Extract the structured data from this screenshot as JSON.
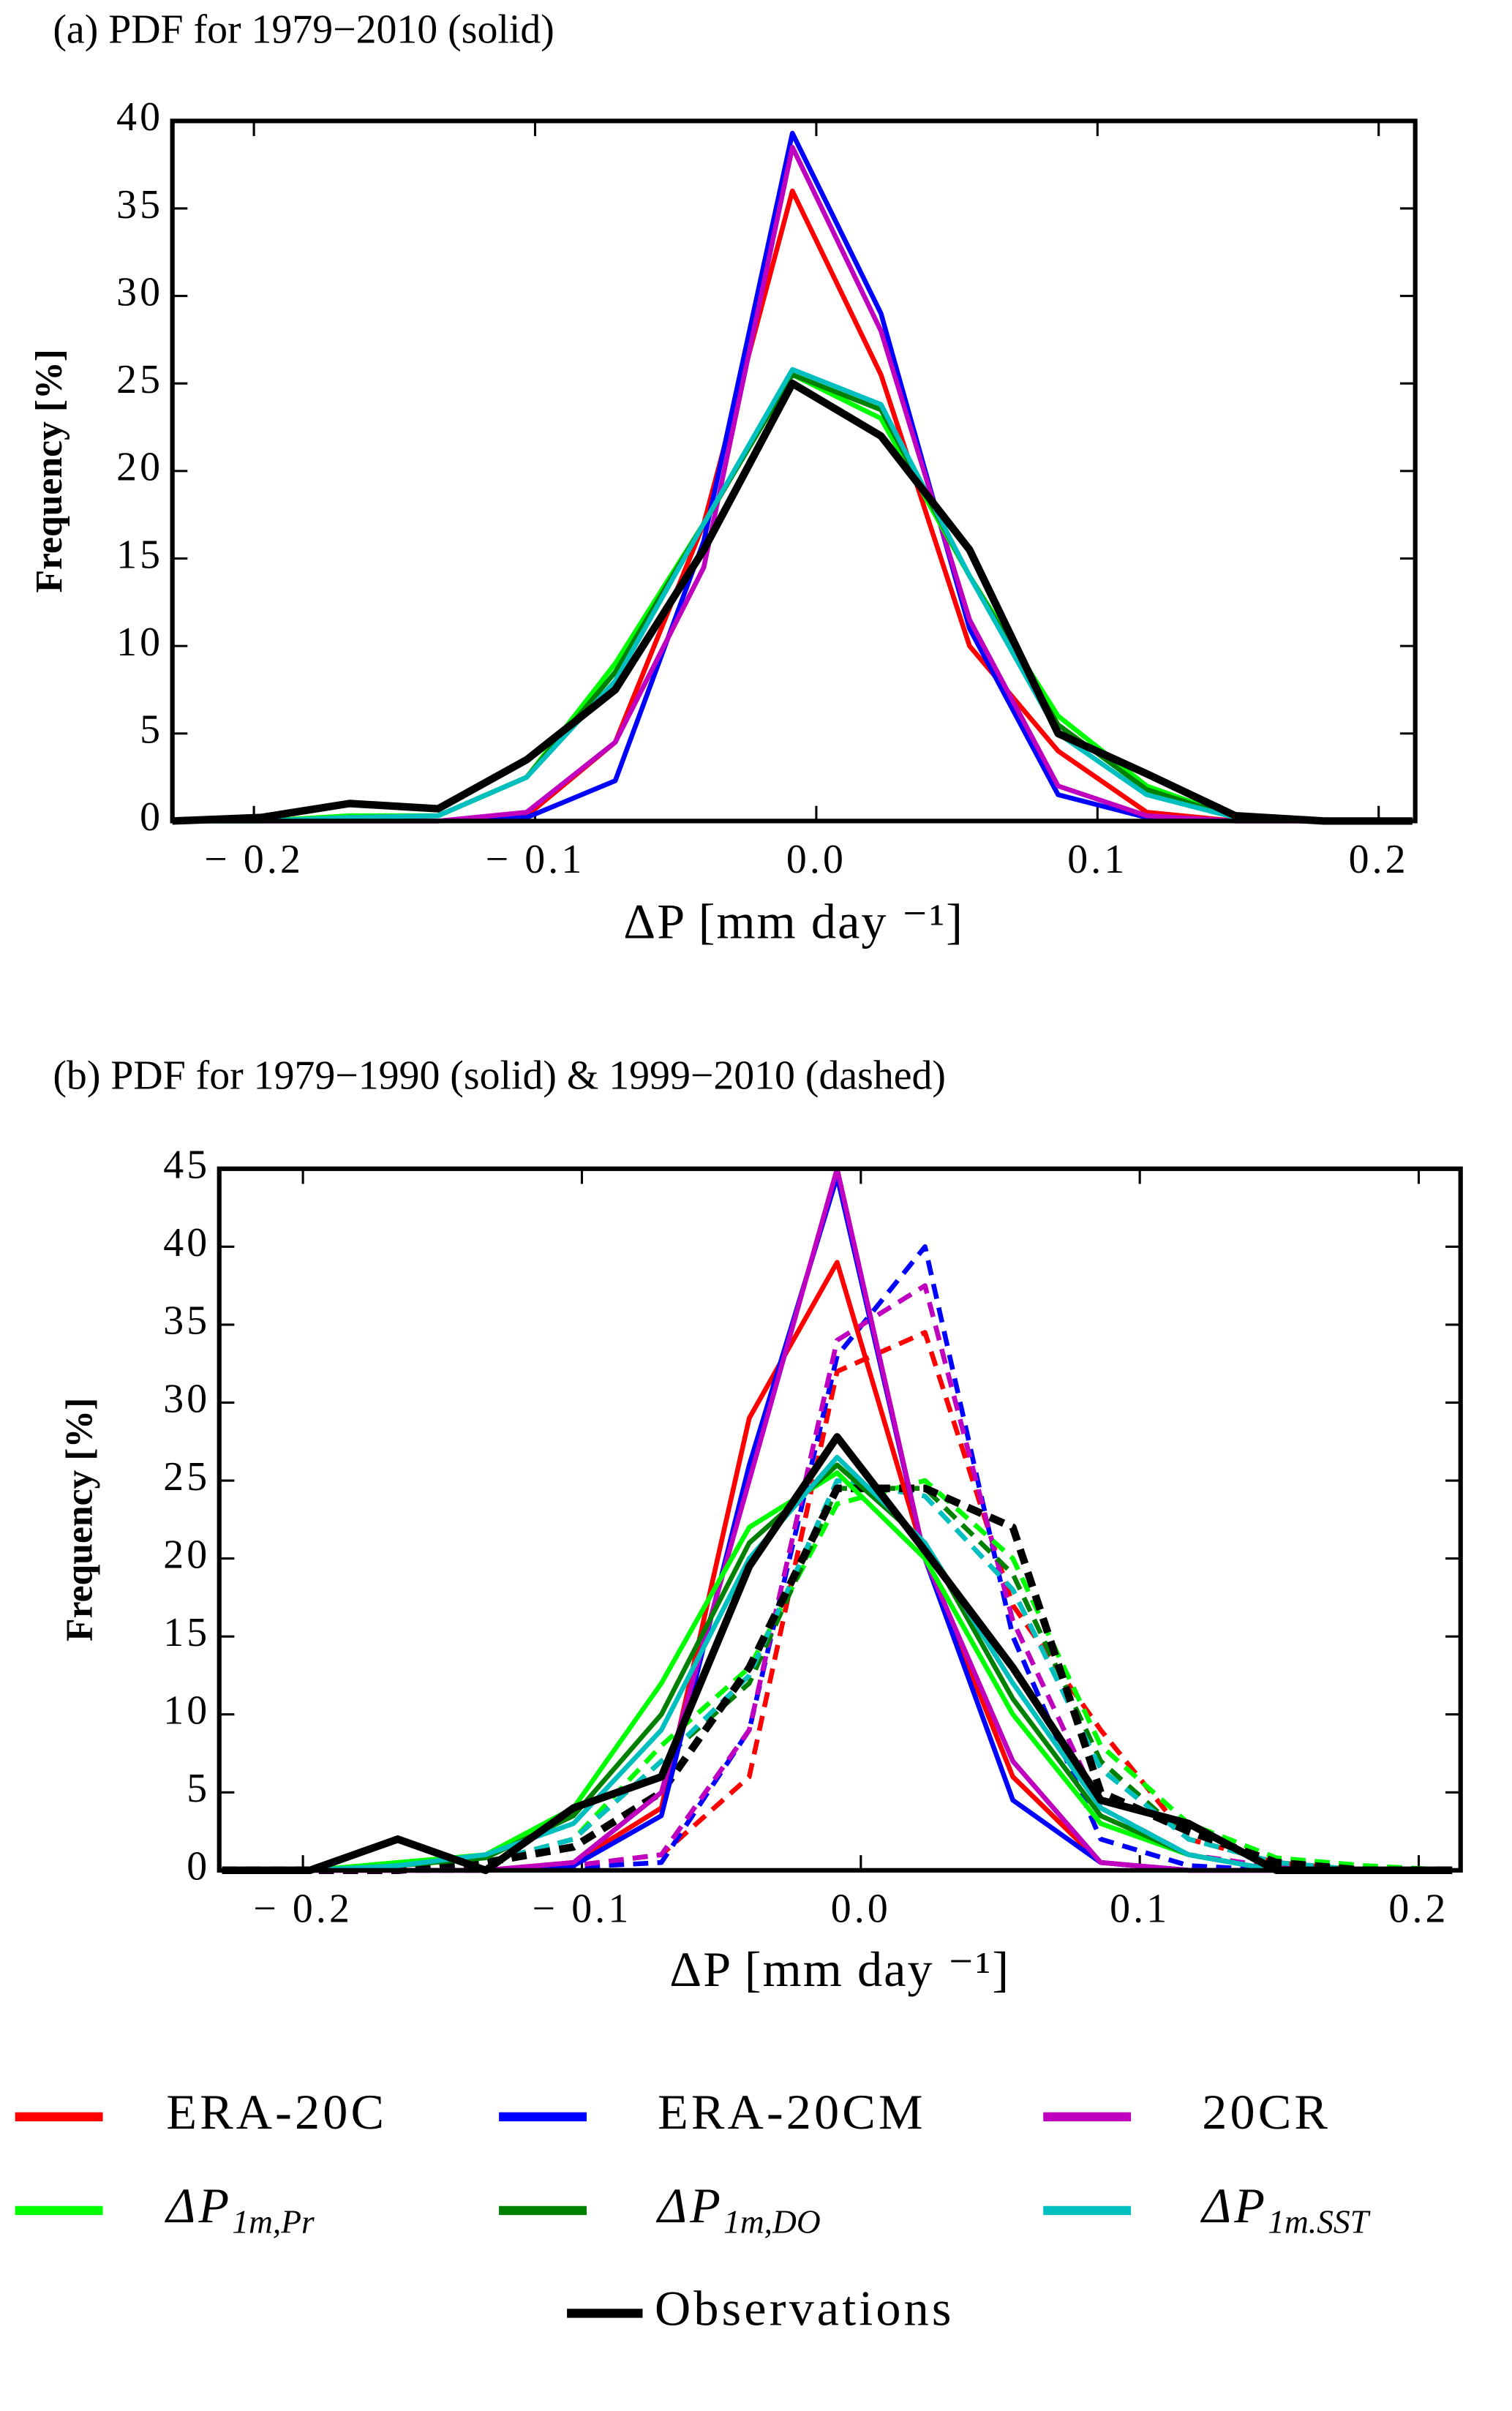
{
  "chart_data": [
    {
      "type": "line",
      "title": "(a) PDF for 1979−2010 (solid)",
      "x_label": "ΔP [mm day ⁻¹]",
      "y_label": "Frequency [%]",
      "x": [
        -0.229,
        -0.1975,
        -0.166,
        -0.1345,
        -0.103,
        -0.0715,
        -0.04,
        -0.0085,
        0.023,
        0.0545,
        0.086,
        0.1175,
        0.149,
        0.1805,
        0.212
      ],
      "xlim": [
        -0.229,
        0.213
      ],
      "ylim": [
        0,
        40
      ],
      "xticks": [
        {
          "value": -0.2,
          "label": "− 0.2"
        },
        {
          "value": -0.1,
          "label": "− 0.1"
        },
        {
          "value": 0.0,
          "label": "0.0"
        },
        0.1,
        0.2
      ],
      "yticks": [
        0,
        5,
        10,
        15,
        20,
        25,
        30,
        35,
        40
      ],
      "series": [
        {
          "name": "ERA-20C",
          "color": "#ff0000",
          "values": [
            0,
            0,
            0,
            0,
            0.3,
            4.5,
            17,
            36,
            25.5,
            10,
            4,
            0.5,
            0,
            0,
            0
          ]
        },
        {
          "name": "ERA-20CM",
          "color": "#0000ff",
          "values": [
            0,
            0,
            0,
            0,
            0.2,
            2.3,
            16,
            39.3,
            29,
            11,
            1.5,
            0.2,
            0,
            0,
            0
          ]
        },
        {
          "name": "20CR",
          "color": "#bf00bf",
          "values": [
            0,
            0,
            0,
            0,
            0.5,
            4.5,
            14.5,
            38.5,
            28,
            11.5,
            2,
            0.3,
            0,
            0,
            0
          ]
        },
        {
          "name": "ΔP",
          "subscript": "1m,Pr",
          "color": "#00ff00",
          "values": [
            0,
            0,
            0.3,
            0.3,
            2.5,
            9,
            17,
            25.5,
            23,
            14,
            6,
            2,
            0.2,
            0,
            0
          ]
        },
        {
          "name": "ΔP",
          "subscript": "1m,DO",
          "color": "#008000",
          "values": [
            0,
            0,
            0.2,
            0.3,
            2.5,
            8.5,
            17,
            25.5,
            23.5,
            14,
            5.5,
            1.8,
            0.2,
            0,
            0
          ]
        },
        {
          "name": "ΔP",
          "subscript": "1m.SST",
          "color": "#00bfbf",
          "values": [
            0,
            0,
            0.2,
            0.3,
            2.5,
            8,
            17,
            25.8,
            23.8,
            14,
            5,
            1.5,
            0.2,
            0,
            0
          ]
        },
        {
          "name": "Observations",
          "color": "#000000",
          "values": [
            0,
            0.2,
            1,
            0.7,
            3.5,
            7.5,
            15.5,
            25,
            22,
            15.5,
            5,
            2.7,
            0.3,
            0,
            0
          ]
        }
      ]
    },
    {
      "type": "line",
      "title": "(b) PDF for 1979−1990 (solid) & 1999−2010 (dashed)",
      "x_label": "ΔP [mm day ⁻¹]",
      "y_label": "Frequency [%]",
      "x": [
        -0.229,
        -0.1975,
        -0.166,
        -0.1345,
        -0.103,
        -0.0715,
        -0.04,
        -0.0085,
        0.023,
        0.0545,
        0.086,
        0.1175,
        0.149,
        0.1805,
        0.212
      ],
      "xlim": [
        -0.23,
        0.215
      ],
      "ylim": [
        0,
        45
      ],
      "xticks": [
        {
          "value": -0.2,
          "label": "− 0.2"
        },
        {
          "value": -0.1,
          "label": "− 0.1"
        },
        {
          "value": 0.0,
          "label": "0.0"
        },
        0.1,
        0.2
      ],
      "yticks": [
        0,
        5,
        10,
        15,
        20,
        25,
        30,
        35,
        40,
        45
      ],
      "series": [
        {
          "color": "#ff0000",
          "dashed": true,
          "values": [
            0,
            0,
            0,
            0,
            0.3,
            1,
            6,
            32,
            34.5,
            17,
            9,
            2,
            0.5,
            0,
            0
          ]
        },
        {
          "color": "#0000ff",
          "dashed": true,
          "values": [
            0,
            0,
            0,
            0,
            0.2,
            0.5,
            9,
            33,
            40,
            15,
            2,
            0.3,
            0,
            0,
            0
          ]
        },
        {
          "color": "#bf00bf",
          "dashed": true,
          "values": [
            0,
            0,
            0,
            0,
            0.3,
            1,
            9,
            34,
            37.5,
            16,
            4,
            1,
            0.2,
            0,
            0
          ]
        },
        {
          "color": "#00ff00",
          "dashed": true,
          "values": [
            0,
            0,
            0.2,
            0.5,
            2,
            8,
            13,
            23.5,
            25,
            20,
            8,
            3,
            0.8,
            0.3,
            0
          ]
        },
        {
          "color": "#008000",
          "dashed": true,
          "values": [
            0,
            0,
            0,
            0.5,
            2,
            7,
            12,
            24.5,
            24.5,
            19,
            7,
            2,
            0.5,
            0,
            0
          ]
        },
        {
          "color": "#00bfbf",
          "dashed": true,
          "values": [
            0,
            0,
            0,
            0.5,
            2,
            7,
            12.5,
            25,
            24,
            18,
            6.5,
            2,
            0.5,
            0,
            0
          ]
        },
        {
          "color": "#000000",
          "dashed": true,
          "values": [
            0,
            0,
            0,
            0.5,
            1.5,
            5,
            13,
            24.5,
            24.5,
            22,
            5,
            2.5,
            0.5,
            0,
            0
          ]
        },
        {
          "color": "#ff0000",
          "dashed": false,
          "values": [
            0,
            0,
            0,
            0,
            0.5,
            4,
            29,
            39,
            20,
            6,
            0.5,
            0,
            0,
            0,
            0
          ]
        },
        {
          "color": "#0000ff",
          "dashed": false,
          "values": [
            0,
            0,
            0,
            0,
            0.3,
            3.5,
            26,
            44.5,
            20,
            4.5,
            0.5,
            0,
            0,
            0,
            0
          ]
        },
        {
          "color": "#bf00bf",
          "dashed": false,
          "values": [
            0,
            0,
            0,
            0,
            0.5,
            5,
            25,
            45,
            20,
            7,
            0.5,
            0,
            0,
            0,
            0
          ]
        },
        {
          "color": "#00ff00",
          "dashed": false,
          "values": [
            0,
            0,
            0.5,
            1,
            4,
            12,
            22,
            25.5,
            20,
            10,
            3,
            1,
            0,
            0,
            0
          ]
        },
        {
          "color": "#008000",
          "dashed": false,
          "values": [
            0,
            0,
            0.3,
            0.8,
            3.5,
            10,
            21,
            26,
            21,
            11,
            3.5,
            1,
            0,
            0,
            0
          ]
        },
        {
          "color": "#00bfbf",
          "dashed": false,
          "values": [
            0,
            0,
            0.3,
            1,
            3,
            9,
            20,
            26.5,
            21,
            12,
            4,
            1,
            0,
            0,
            0
          ]
        },
        {
          "color": "#000000",
          "dashed": false,
          "values": [
            0,
            0,
            2,
            0,
            4,
            6,
            19.5,
            27.8,
            20.5,
            13,
            4.5,
            3,
            0,
            0,
            0
          ]
        }
      ]
    }
  ]
}
